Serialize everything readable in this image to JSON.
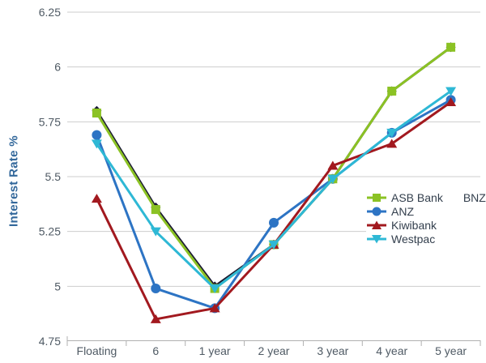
{
  "chart_data": {
    "type": "line",
    "title": "",
    "ylabel": "Interest Rate %",
    "xlabel": "",
    "categories": [
      "Floating",
      "6",
      "1 year",
      "2 year",
      "3 year",
      "4 year",
      "5 year"
    ],
    "ylim": [
      4.75,
      6.25
    ],
    "ytick_step": 0.25,
    "ytick_labels": [
      "4.75",
      "5",
      "5.25",
      "5.5",
      "5.75",
      "6",
      "6.25"
    ],
    "grid": true,
    "legend_position": "middle-right",
    "series": [
      {
        "name": "BNZ",
        "color": "#1a1a33",
        "marker": "diamond",
        "values": [
          5.8,
          5.36,
          5.0,
          5.19,
          5.49,
          5.89,
          6.09
        ]
      },
      {
        "name": "ANZ",
        "color": "#2d74c4",
        "marker": "circle",
        "values": [
          5.69,
          4.99,
          4.9,
          5.29,
          5.49,
          5.7,
          5.85
        ]
      },
      {
        "name": "ASB Bank",
        "color": "#8bc224",
        "marker": "square",
        "values": [
          5.79,
          5.35,
          4.99,
          5.19,
          5.49,
          5.89,
          6.09
        ]
      },
      {
        "name": "Kiwibank",
        "color": "#a2191f",
        "marker": "triangle-up",
        "values": [
          5.4,
          4.85,
          4.9,
          5.19,
          5.55,
          5.65,
          5.84
        ]
      },
      {
        "name": "Westpac",
        "color": "#2eb8d5",
        "marker": "triangle-down",
        "values": [
          5.65,
          5.25,
          4.99,
          5.19,
          5.49,
          5.7,
          5.89
        ]
      }
    ],
    "legend_rows": [
      [
        "ASB Bank",
        "BNZ"
      ],
      [
        "ANZ"
      ],
      [
        "Kiwibank"
      ],
      [
        "Westpac"
      ]
    ],
    "series_without_legend_marker": [
      "BNZ"
    ]
  },
  "colors": {
    "background": "#ffffff",
    "gridline": "#cdcdcd",
    "axis": "#b0b0b0",
    "tick_label": "#4f5a64",
    "axis_title": "#33689b",
    "legend_text": "#333f4d"
  }
}
